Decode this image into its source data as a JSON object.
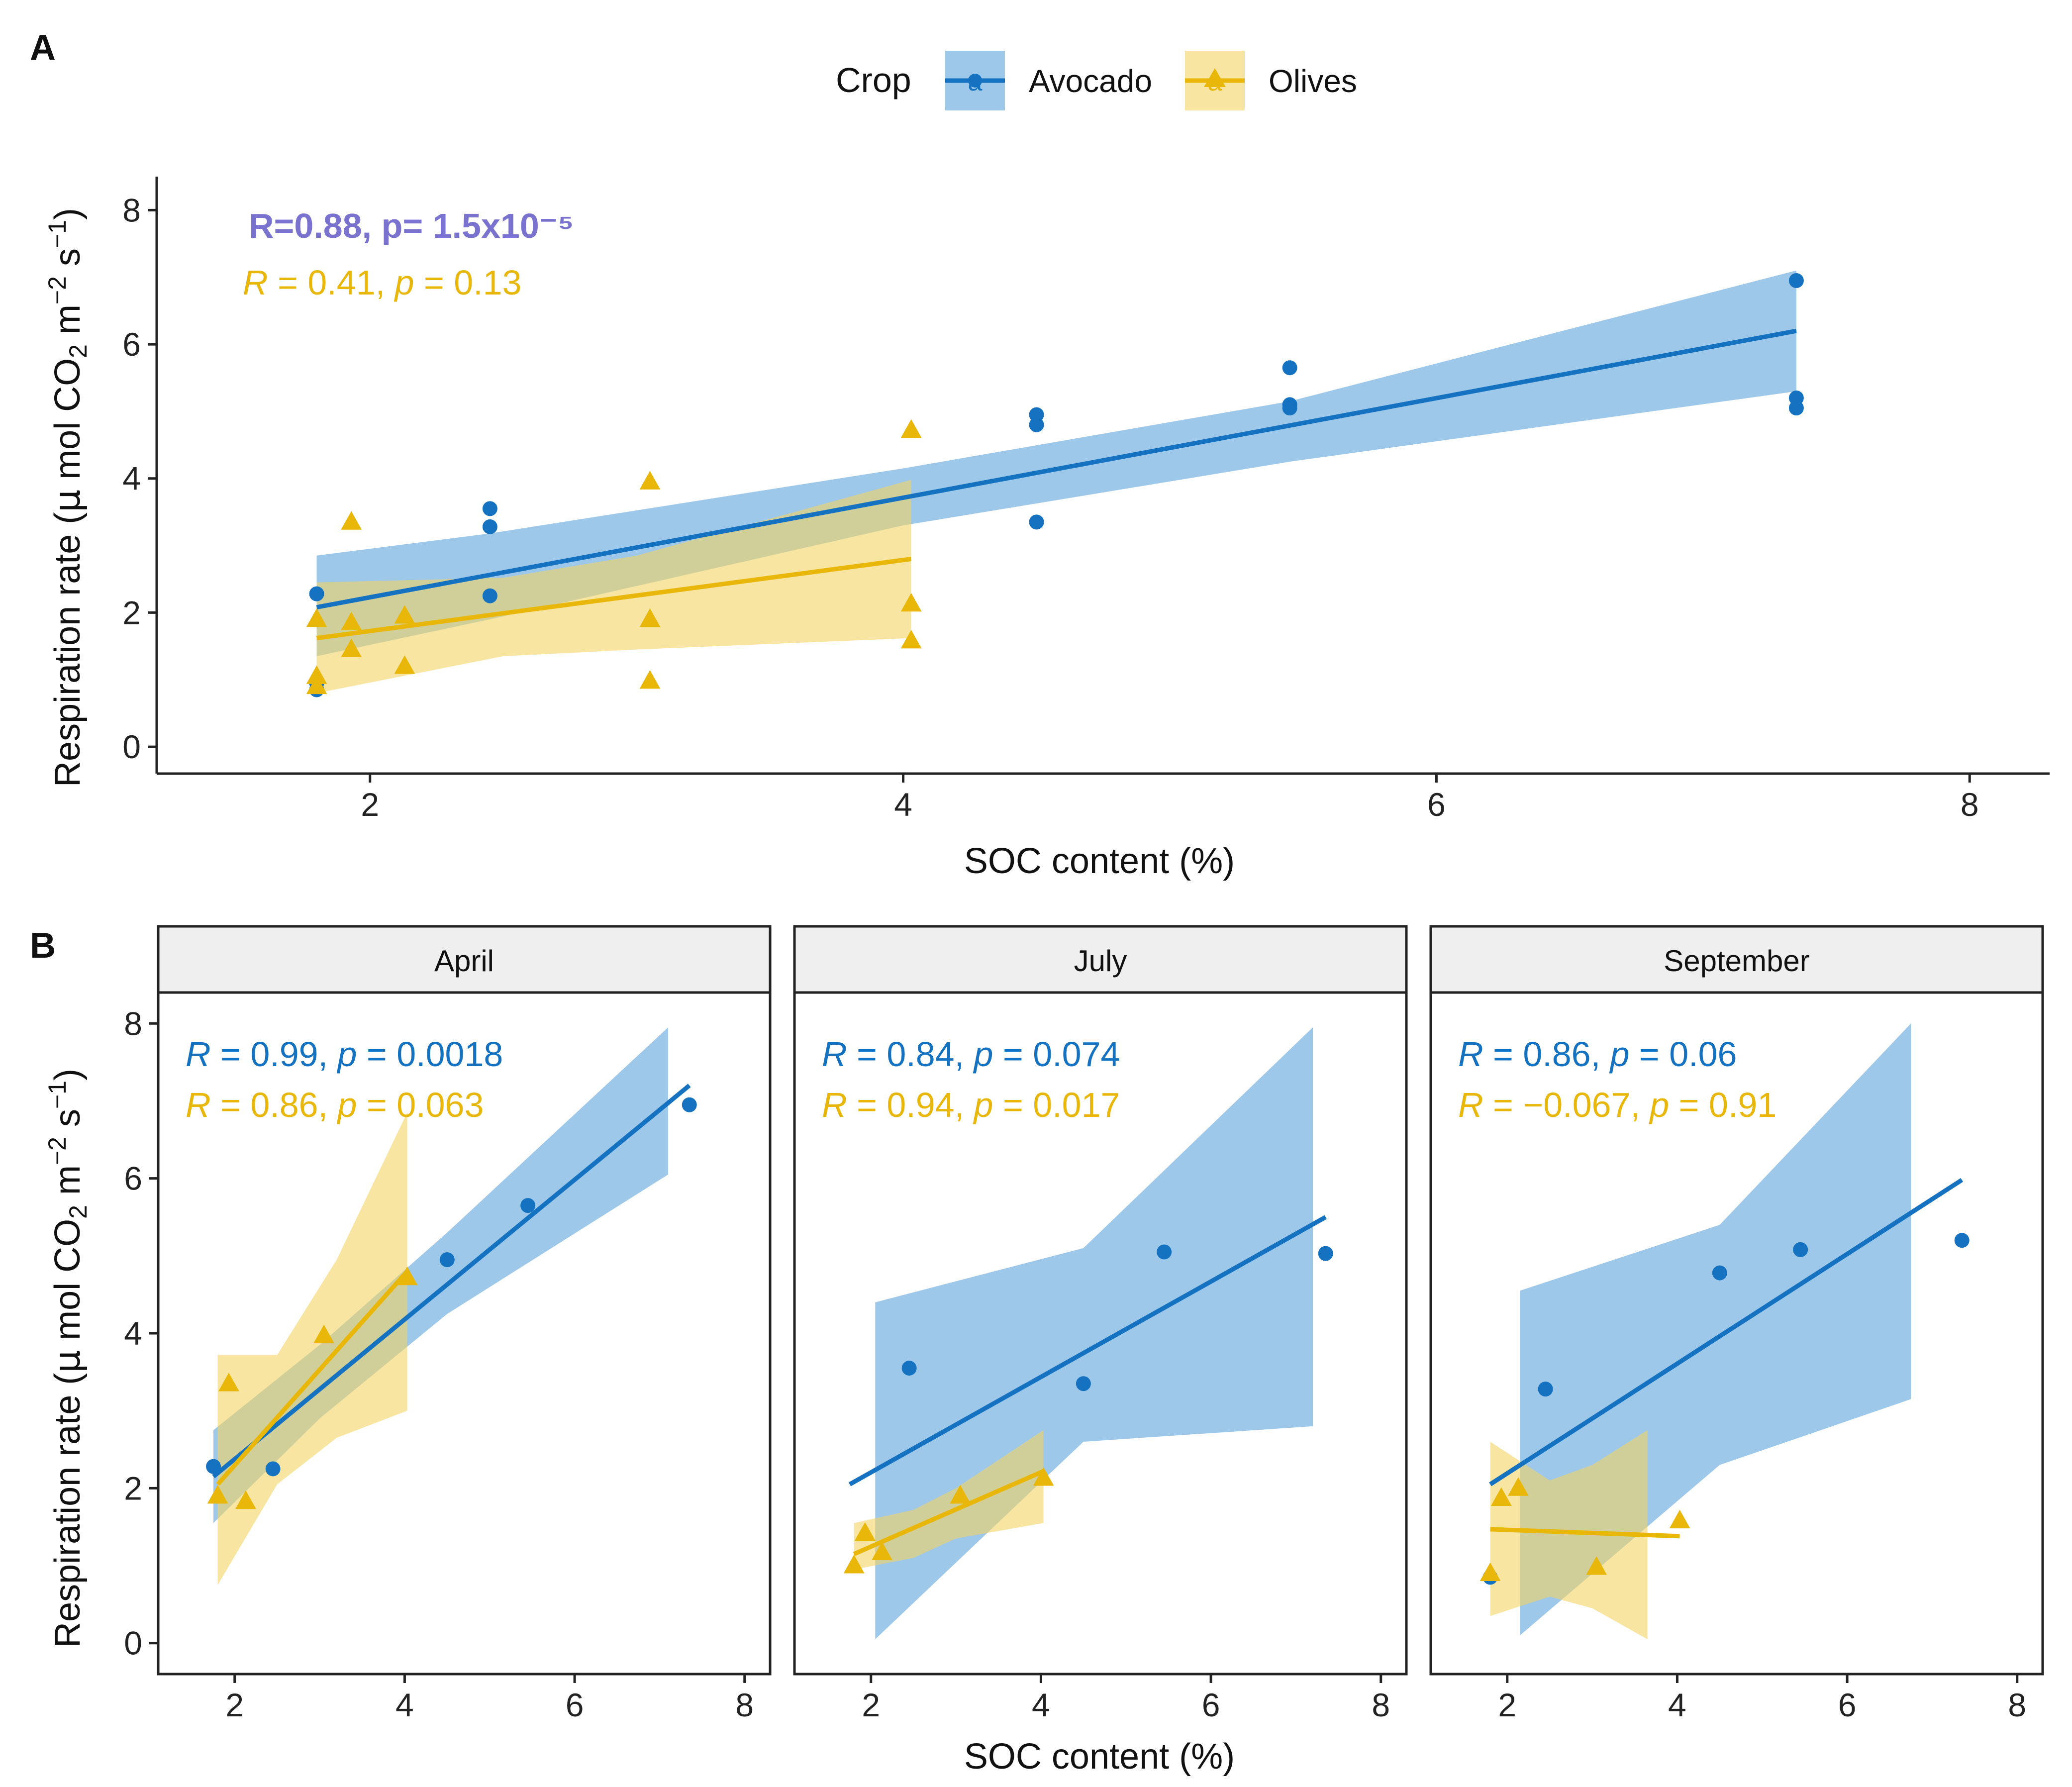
{
  "colors": {
    "avocado": "#1472C0",
    "avocado_fill": "#5BA3DC",
    "olives": "#E8B70A",
    "olives_fill": "#F3D463",
    "stat_highlight": "#7A72CF",
    "strip_bg": "#EFEFEF",
    "axis": "#222222"
  },
  "legend": {
    "title": "Crop",
    "items": [
      {
        "label": "Avocado",
        "key": "avocado",
        "marker": "circle"
      },
      {
        "label": "Olives",
        "key": "olives",
        "marker": "triangle"
      }
    ]
  },
  "chart_data": [
    {
      "panel": "A",
      "type": "scatter",
      "title": "",
      "xlabel": "SOC content (%)",
      "ylabel_main": "Respiration rate (",
      "ylabel_mu": "μ",
      "ylabel_mol": " mol CO",
      "ylabel_sub2": "2",
      "ylabel_m": " m",
      "ylabel_sup1": "−2",
      "ylabel_s": " s",
      "ylabel_sup2": "−1",
      "ylabel_close": ")",
      "xlim": [
        1.2,
        8.3
      ],
      "ylim": [
        -0.4,
        8.5
      ],
      "xticks": [
        2,
        4,
        6,
        8
      ],
      "yticks": [
        0,
        2,
        4,
        6,
        8
      ],
      "stats": [
        {
          "series": "avocado",
          "text": "R=0.88, p= 1.5x10⁻⁵",
          "style": "bold"
        },
        {
          "series": "olives",
          "R": "0.41",
          "p": "0.13",
          "style": "italic"
        }
      ],
      "series": [
        {
          "name": "Avocado",
          "key": "avocado",
          "points": [
            [
              1.8,
              0.85
            ],
            [
              1.8,
              0.95
            ],
            [
              1.8,
              2.28
            ],
            [
              2.45,
              3.55
            ],
            [
              2.45,
              3.28
            ],
            [
              2.45,
              2.25
            ],
            [
              4.5,
              4.95
            ],
            [
              4.5,
              4.8
            ],
            [
              4.5,
              3.35
            ],
            [
              5.45,
              5.65
            ],
            [
              5.45,
              5.1
            ],
            [
              5.45,
              5.05
            ],
            [
              7.35,
              6.95
            ],
            [
              7.35,
              5.2
            ],
            [
              7.35,
              5.05
            ]
          ],
          "fit": {
            "x0": 1.8,
            "y0": 2.08,
            "x1": 7.35,
            "y1": 6.2
          },
          "ci": {
            "x": [
              1.8,
              2.45,
              4.0,
              5.45,
              7.35
            ],
            "lower": [
              1.35,
              1.9,
              3.3,
              4.25,
              5.3
            ],
            "upper": [
              2.85,
              3.18,
              4.15,
              5.15,
              7.1
            ]
          }
        },
        {
          "name": "Olives",
          "key": "olives",
          "points": [
            [
              1.8,
              1.9
            ],
            [
              1.8,
              1.05
            ],
            [
              1.8,
              0.9
            ],
            [
              1.93,
              3.35
            ],
            [
              1.93,
              1.85
            ],
            [
              1.93,
              1.45
            ],
            [
              2.13,
              1.95
            ],
            [
              2.13,
              1.2
            ],
            [
              3.05,
              3.95
            ],
            [
              3.05,
              1.9
            ],
            [
              3.05,
              0.98
            ],
            [
              4.03,
              4.72
            ],
            [
              4.03,
              2.13
            ],
            [
              4.03,
              1.58
            ]
          ],
          "fit": {
            "x0": 1.8,
            "y0": 1.62,
            "x1": 4.03,
            "y1": 2.8
          },
          "ci": {
            "x": [
              1.8,
              2.5,
              3.0,
              4.03
            ],
            "lower": [
              0.8,
              1.35,
              1.45,
              1.62
            ],
            "upper": [
              2.45,
              2.52,
              2.85,
              3.98
            ]
          }
        }
      ]
    },
    {
      "panel": "B",
      "type": "scatter",
      "xlabel": "SOC content (%)",
      "ylabel_main": "Respiration rate (",
      "ylabel_mu": "μ",
      "ylabel_mol": " mol CO",
      "ylabel_sub2": "2",
      "ylabel_m": " m",
      "ylabel_sup1": "−2",
      "ylabel_s": " s",
      "ylabel_sup2": "−1",
      "ylabel_close": ")",
      "xlim": [
        1.1,
        8.3
      ],
      "ylim": [
        -0.4,
        8.4
      ],
      "xticks": [
        2,
        4,
        6,
        8
      ],
      "yticks": [
        0,
        2,
        4,
        6,
        8
      ],
      "facets": [
        {
          "strip": "April",
          "stats": [
            {
              "series": "avocado",
              "R": "0.99",
              "p": "0.0018"
            },
            {
              "series": "olives",
              "R": "0.86",
              "p": "0.063"
            }
          ],
          "series": [
            {
              "key": "avocado",
              "points": [
                [
                  1.75,
                  2.28
                ],
                [
                  2.45,
                  2.25
                ],
                [
                  4.5,
                  4.95
                ],
                [
                  5.45,
                  5.65
                ],
                [
                  7.35,
                  6.95
                ]
              ],
              "fit": {
                "x0": 1.75,
                "y0": 2.15,
                "x1": 7.35,
                "y1": 7.2
              },
              "ci": {
                "x": [
                  1.75,
                  3.0,
                  4.5,
                  7.1
                ],
                "lower": [
                  1.55,
                  2.9,
                  4.25,
                  6.05
                ],
                "upper": [
                  2.75,
                  3.85,
                  5.3,
                  7.95
                ]
              }
            },
            {
              "key": "olives",
              "points": [
                [
                  1.8,
                  1.9
                ],
                [
                  1.93,
                  3.35
                ],
                [
                  2.13,
                  1.83
                ],
                [
                  3.05,
                  3.97
                ],
                [
                  4.03,
                  4.72
                ]
              ],
              "fit": {
                "x0": 1.8,
                "y0": 2.05,
                "x1": 4.03,
                "y1": 4.8
              },
              "ci": {
                "x": [
                  1.8,
                  2.5,
                  3.2,
                  4.03
                ],
                "lower": [
                  0.75,
                  2.05,
                  2.65,
                  3.0
                ],
                "upper": [
                  3.72,
                  3.72,
                  4.95,
                  6.85
                ]
              }
            }
          ]
        },
        {
          "strip": "July",
          "stats": [
            {
              "series": "avocado",
              "R": "0.84",
              "p": "0.074"
            },
            {
              "series": "olives",
              "R": "0.94",
              "p": "0.017"
            }
          ],
          "series": [
            {
              "key": "avocado",
              "points": [
                [
                  2.45,
                  3.55
                ],
                [
                  4.5,
                  3.35
                ],
                [
                  5.45,
                  5.05
                ],
                [
                  7.35,
                  5.03
                ]
              ],
              "fit": {
                "x0": 1.75,
                "y0": 2.05,
                "x1": 7.35,
                "y1": 5.5
              },
              "ci": {
                "x": [
                  2.05,
                  4.5,
                  7.2
                ],
                "lower": [
                  0.05,
                  2.6,
                  2.8
                ],
                "upper": [
                  4.4,
                  5.1,
                  7.95
                ]
              }
            },
            {
              "key": "olives",
              "points": [
                [
                  1.8,
                  1.0
                ],
                [
                  1.93,
                  1.42
                ],
                [
                  2.13,
                  1.17
                ],
                [
                  3.05,
                  1.9
                ],
                [
                  4.03,
                  2.13
                ]
              ],
              "fit": {
                "x0": 1.8,
                "y0": 1.15,
                "x1": 4.03,
                "y1": 2.22
              },
              "ci": {
                "x": [
                  1.8,
                  2.5,
                  3.0,
                  4.03
                ],
                "lower": [
                  0.95,
                  1.1,
                  1.35,
                  1.55
                ],
                "upper": [
                  1.55,
                  1.72,
                  2.0,
                  2.75
                ]
              }
            }
          ]
        },
        {
          "strip": "September",
          "stats": [
            {
              "series": "avocado",
              "R": "0.86",
              "p": "0.06"
            },
            {
              "series": "olives",
              "R": "−0.067",
              "p": "0.91"
            }
          ],
          "series": [
            {
              "key": "avocado",
              "points": [
                [
                  1.8,
                  0.85
                ],
                [
                  2.45,
                  3.28
                ],
                [
                  4.5,
                  4.78
                ],
                [
                  5.45,
                  5.08
                ],
                [
                  7.35,
                  5.2
                ]
              ],
              "fit": {
                "x0": 1.8,
                "y0": 2.05,
                "x1": 7.35,
                "y1": 5.98
              },
              "ci": {
                "x": [
                  2.15,
                  4.5,
                  6.75
                ],
                "lower": [
                  0.1,
                  2.3,
                  3.15
                ],
                "upper": [
                  4.55,
                  5.4,
                  8.0
                ]
              }
            },
            {
              "key": "olives",
              "points": [
                [
                  1.8,
                  0.9
                ],
                [
                  1.93,
                  1.87
                ],
                [
                  2.13,
                  2.0
                ],
                [
                  3.05,
                  0.98
                ],
                [
                  4.03,
                  1.58
                ]
              ],
              "fit": {
                "x0": 1.8,
                "y0": 1.47,
                "x1": 4.03,
                "y1": 1.38
              },
              "ci": {
                "x": [
                  1.8,
                  2.5,
                  3.0,
                  3.65
                ],
                "lower": [
                  0.35,
                  0.6,
                  0.45,
                  0.05
                ],
                "upper": [
                  2.6,
                  2.1,
                  2.3,
                  2.75
                ]
              }
            }
          ]
        }
      ]
    }
  ],
  "panel_labels": [
    "A",
    "B"
  ]
}
